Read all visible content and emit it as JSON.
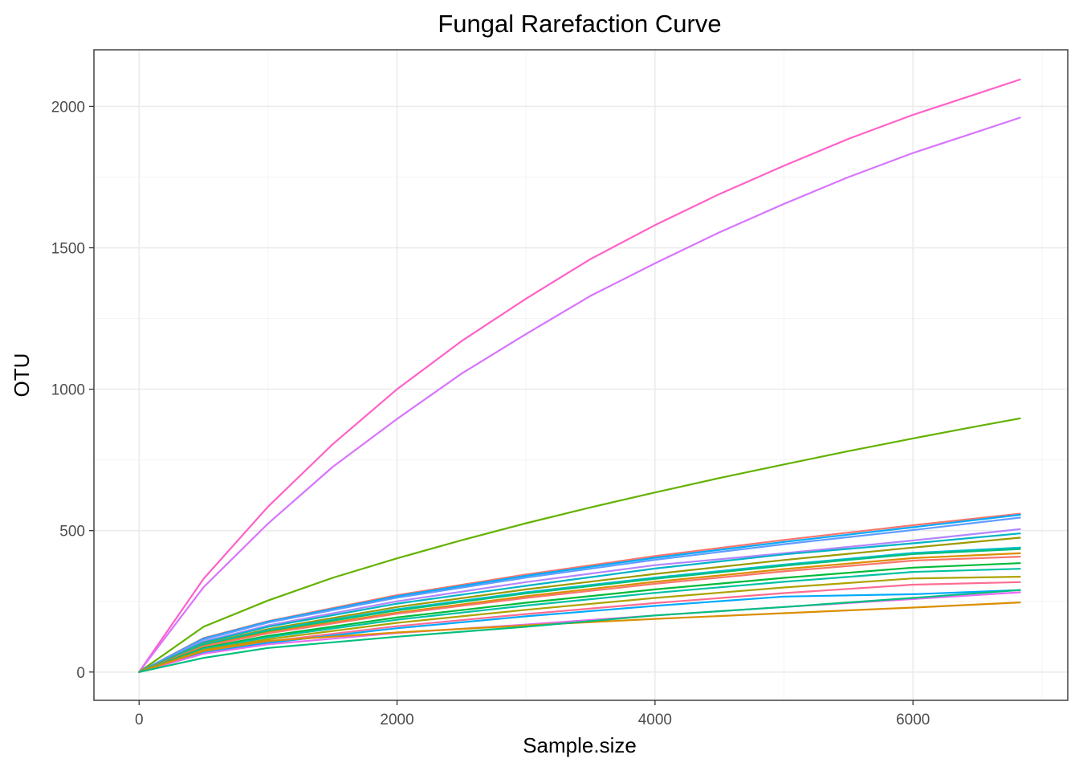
{
  "chart_data": {
    "type": "line",
    "title": "Fungal Rarefaction Curve",
    "xlabel": "Sample.size",
    "ylabel": "OTU",
    "xlim": [
      -350,
      7200
    ],
    "ylim": [
      -100,
      2200
    ],
    "x_ticks": [
      0,
      2000,
      4000,
      6000
    ],
    "x_tick_labels": [
      "0",
      "2000",
      "4000",
      "6000"
    ],
    "y_ticks": [
      0,
      500,
      1000,
      1500,
      2000
    ],
    "y_tick_labels": [
      "0",
      "500",
      "1000",
      "1500",
      "2000"
    ],
    "x_minor_ticks": [
      1000,
      3000,
      5000,
      7000
    ],
    "y_minor_ticks": [
      250,
      750,
      1250,
      1750
    ],
    "grid": true,
    "legend": "none",
    "series": [
      {
        "color": "#FF61C9",
        "x": [
          0,
          500,
          1000,
          1500,
          2000,
          2500,
          3000,
          3500,
          4000,
          4500,
          5000,
          5500,
          6000,
          6500,
          6830
        ],
        "values": [
          0,
          330,
          585,
          805,
          1000,
          1170,
          1320,
          1460,
          1580,
          1690,
          1790,
          1885,
          1970,
          2045,
          2095
        ]
      },
      {
        "color": "#D874FD",
        "x": [
          0,
          500,
          1000,
          1500,
          2000,
          2500,
          3000,
          3500,
          4000,
          4500,
          5000,
          5500,
          6000,
          6500,
          6830
        ],
        "values": [
          0,
          300,
          525,
          725,
          895,
          1055,
          1195,
          1330,
          1445,
          1555,
          1655,
          1750,
          1835,
          1910,
          1960
        ]
      },
      {
        "color": "#64B200",
        "x": [
          0,
          500,
          1000,
          1500,
          2000,
          2500,
          3000,
          3500,
          4000,
          4500,
          5000,
          5500,
          6000,
          6500,
          6830
        ],
        "values": [
          0,
          160,
          253,
          333,
          402,
          466,
          526,
          582,
          635,
          686,
          734,
          781,
          826,
          869,
          897
        ]
      },
      {
        "color": "#F8766D",
        "x": [
          0,
          500,
          1000,
          2000,
          3000,
          4000,
          5000,
          6000,
          6830
        ],
        "values": [
          0,
          120,
          180,
          272,
          345,
          410,
          467,
          519,
          560
        ]
      },
      {
        "color": "#00ABFD",
        "x": [
          0,
          500,
          1000,
          2000,
          3000,
          4000,
          5000,
          6000,
          6830
        ],
        "values": [
          0,
          118,
          178,
          268,
          340,
          404,
          460,
          512,
          556
        ]
      },
      {
        "color": "#619CFF",
        "x": [
          0,
          500,
          1000,
          2000,
          3000,
          4000,
          5000,
          6000,
          6830
        ],
        "values": [
          0,
          115,
          175,
          263,
          334,
          397,
          452,
          502,
          546
        ]
      },
      {
        "color": "#B385FF",
        "x": [
          0,
          500,
          1000,
          2000,
          3000,
          4000,
          5000,
          6000,
          6830
        ],
        "values": [
          0,
          108,
          165,
          250,
          318,
          378,
          420,
          465,
          505
        ]
      },
      {
        "color": "#00B4C4",
        "x": [
          0,
          500,
          1000,
          2000,
          3000,
          4000,
          5000,
          6000,
          6830
        ],
        "values": [
          0,
          105,
          160,
          242,
          305,
          366,
          416,
          455,
          490
        ]
      },
      {
        "color": "#9B9A00",
        "x": [
          0,
          500,
          1000,
          2000,
          3000,
          4000,
          5000,
          6000,
          6830
        ],
        "values": [
          0,
          100,
          152,
          230,
          292,
          347,
          396,
          440,
          475
        ]
      },
      {
        "color": "#00BDD0",
        "x": [
          0,
          500,
          1000,
          2000,
          3000,
          4000,
          5000,
          6000,
          6830
        ],
        "values": [
          0,
          98,
          148,
          222,
          282,
          334,
          380,
          421,
          440
        ]
      },
      {
        "color": "#00BF7D",
        "x": [
          0,
          500,
          1000,
          2000,
          3000,
          4000,
          5000,
          6000,
          6830
        ],
        "values": [
          0,
          95,
          145,
          218,
          278,
          330,
          376,
          417,
          435
        ]
      },
      {
        "color": "#DB8E00",
        "x": [
          0,
          500,
          1000,
          2000,
          3000,
          4000,
          5000,
          6000,
          6830
        ],
        "values": [
          0,
          92,
          140,
          210,
          268,
          319,
          364,
          403,
          420
        ]
      },
      {
        "color": "#F8766D",
        "x": [
          0,
          500,
          1000,
          2000,
          3000,
          4000,
          5000,
          6000,
          6830
        ],
        "values": [
          0,
          90,
          137,
          206,
          262,
          312,
          356,
          394,
          408
        ]
      },
      {
        "color": "#00BA38",
        "x": [
          0,
          500,
          1000,
          2000,
          3000,
          4000,
          5000,
          6000,
          6830
        ],
        "values": [
          0,
          85,
          128,
          193,
          245,
          292,
          333,
          369,
          385
        ]
      },
      {
        "color": "#00C1A3",
        "x": [
          0,
          500,
          1000,
          2000,
          3000,
          4000,
          5000,
          6000,
          6830
        ],
        "values": [
          0,
          82,
          123,
          185,
          235,
          280,
          319,
          354,
          365
        ]
      },
      {
        "color": "#AEA200",
        "x": [
          0,
          500,
          1000,
          2000,
          3000,
          4000,
          5000,
          6000,
          6830
        ],
        "values": [
          0,
          78,
          116,
          174,
          220,
          262,
          299,
          331,
          337
        ]
      },
      {
        "color": "#FF6C91",
        "x": [
          0,
          500,
          1000,
          2000,
          3000,
          4000,
          5000,
          6000,
          6830
        ],
        "values": [
          0,
          72,
          108,
          162,
          205,
          244,
          279,
          309,
          318
        ]
      },
      {
        "color": "#00A9FF",
        "x": [
          0,
          500,
          1000,
          2000,
          3000,
          4000,
          5000,
          6000,
          6830
        ],
        "values": [
          0,
          68,
          103,
          155,
          197,
          234,
          267,
          275,
          290
        ]
      },
      {
        "color": "#E76BF3",
        "x": [
          0,
          500,
          1000,
          2000,
          3000,
          4000,
          5000,
          6000,
          6830
        ],
        "values": [
          0,
          65,
          98,
          138,
          168,
          200,
          230,
          258,
          282
        ]
      },
      {
        "color": "#DB8E00",
        "x": [
          0,
          500,
          1000,
          2000,
          3000,
          4000,
          5000,
          6000,
          6830
        ],
        "values": [
          0,
          75,
          110,
          140,
          165,
          188,
          208,
          228,
          246
        ]
      },
      {
        "color": "#00BF7D",
        "x": [
          0,
          500,
          1000,
          2000,
          3000,
          4000,
          5000,
          6000,
          6830
        ],
        "values": [
          0,
          50,
          85,
          125,
          160,
          200,
          230,
          262,
          290
        ]
      }
    ]
  }
}
